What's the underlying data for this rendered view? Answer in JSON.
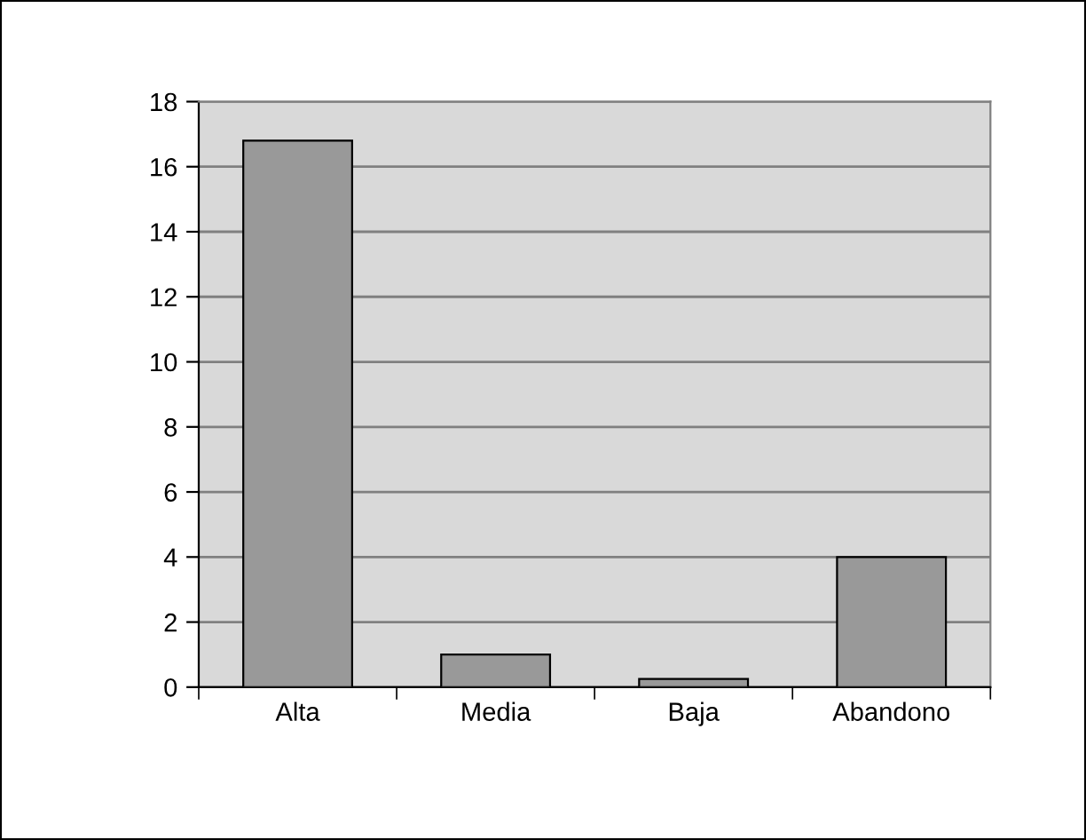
{
  "chart_data": {
    "type": "bar",
    "categories": [
      "Alta",
      "Media",
      "Baja",
      "Abandono"
    ],
    "values": [
      16.8,
      1,
      0.25,
      4
    ],
    "color": "#999999",
    "ylim": [
      0,
      18
    ],
    "yticks": [
      0,
      2,
      4,
      6,
      8,
      10,
      12,
      14,
      16,
      18
    ],
    "grid": "y",
    "legend": false
  }
}
